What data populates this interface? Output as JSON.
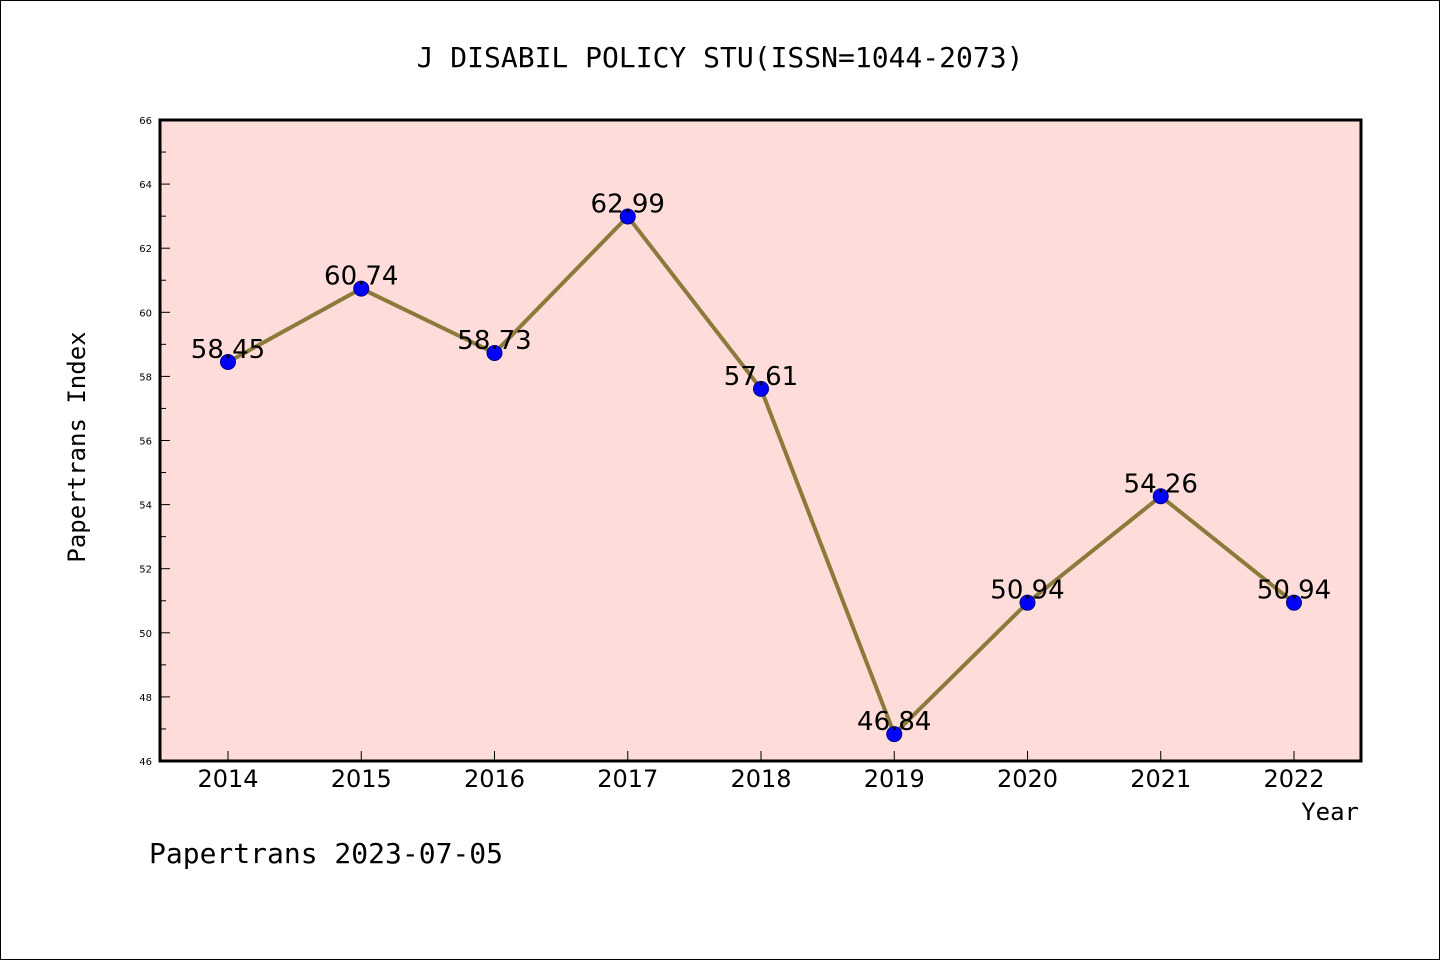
{
  "colors": {
    "plot_background": "#fddcd9",
    "line": "#8b7a3a",
    "marker_fill": "#0000ff",
    "marker_edge": "#00008b",
    "axes": "#000000"
  },
  "footer": {
    "text": "Papertrans 2023-07-05"
  },
  "chart_data": {
    "type": "line",
    "title": "J DISABIL POLICY STU(ISSN=1044-2073)",
    "xlabel": "Year",
    "ylabel": "Papertrans Index",
    "x": [
      "2014",
      "2015",
      "2016",
      "2017",
      "2018",
      "2019",
      "2020",
      "2021",
      "2022"
    ],
    "series": [
      {
        "values": [
          58.45,
          60.74,
          58.73,
          62.99,
          57.61,
          46.84,
          50.94,
          54.26,
          50.94
        ],
        "labels": [
          "58.45",
          "60.74",
          "58.73",
          "62.99",
          "57.61",
          "46.84",
          "50.94",
          "54.26",
          "50.94"
        ]
      }
    ],
    "ylim": [
      46,
      66
    ],
    "yticks": [
      46,
      48,
      50,
      52,
      54,
      56,
      58,
      60,
      62,
      64,
      66
    ],
    "y_minor_step": 1,
    "grid": false,
    "legend": "none",
    "markers": "circle"
  }
}
